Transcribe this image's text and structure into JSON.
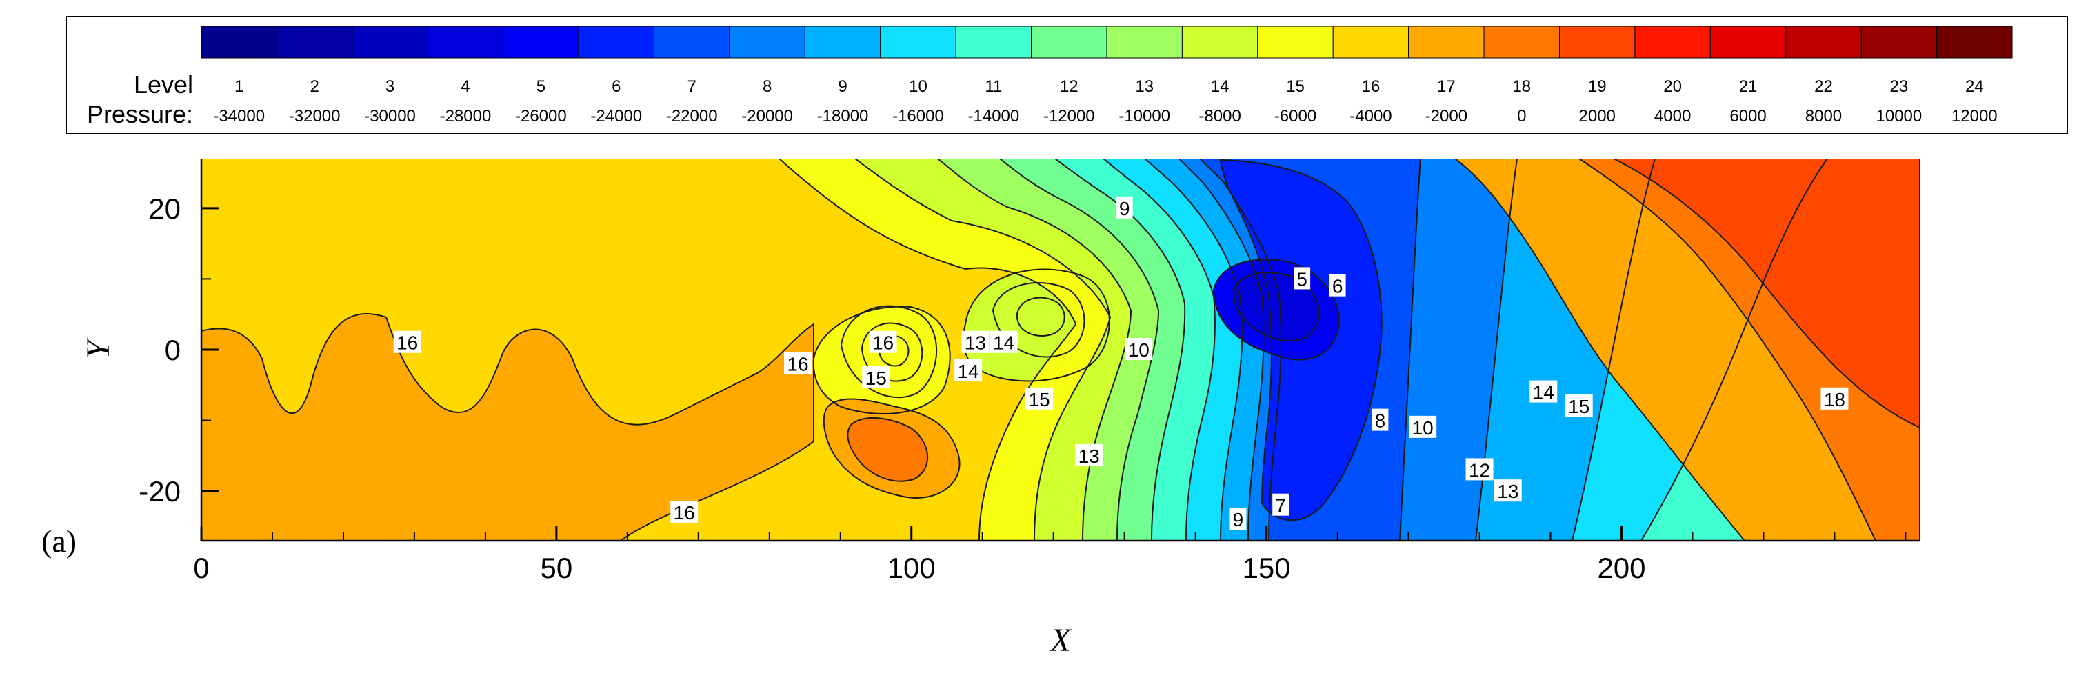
{
  "chart_data": {
    "type": "heatmap",
    "subtype": "contour",
    "panel_label": "(a)",
    "xlabel": "X",
    "ylabel": "Y",
    "xlim": [
      0,
      242
    ],
    "ylim": [
      -27,
      27
    ],
    "xticks": [
      0,
      50,
      100,
      150,
      200
    ],
    "yticks": [
      -20,
      0,
      20
    ],
    "legend": {
      "placement": "top",
      "level_caption": "Level",
      "pressure_caption": "Pressure:",
      "levels": [
        {
          "level": "1",
          "pressure": "-34000",
          "color": "#00008f"
        },
        {
          "level": "2",
          "pressure": "-32000",
          "color": "#0000a6"
        },
        {
          "level": "3",
          "pressure": "-30000",
          "color": "#0000c0"
        },
        {
          "level": "4",
          "pressure": "-28000",
          "color": "#0000dc"
        },
        {
          "level": "5",
          "pressure": "-26000",
          "color": "#0000f5"
        },
        {
          "level": "6",
          "pressure": "-24000",
          "color": "#0020ff"
        },
        {
          "level": "7",
          "pressure": "-22000",
          "color": "#0050ff"
        },
        {
          "level": "8",
          "pressure": "-20000",
          "color": "#0080ff"
        },
        {
          "level": "9",
          "pressure": "-18000",
          "color": "#00b0ff"
        },
        {
          "level": "10",
          "pressure": "-16000",
          "color": "#10e0ff"
        },
        {
          "level": "11",
          "pressure": "-14000",
          "color": "#40ffd0"
        },
        {
          "level": "12",
          "pressure": "-12000",
          "color": "#70ff90"
        },
        {
          "level": "13",
          "pressure": "-10000",
          "color": "#a0ff60"
        },
        {
          "level": "14",
          "pressure": "-8000",
          "color": "#d0ff30"
        },
        {
          "level": "15",
          "pressure": "-6000",
          "color": "#f8ff10"
        },
        {
          "level": "16",
          "pressure": "-4000",
          "color": "#ffd800"
        },
        {
          "level": "17",
          "pressure": "-2000",
          "color": "#ffa800"
        },
        {
          "level": "18",
          "pressure": "0",
          "color": "#ff7800"
        },
        {
          "level": "19",
          "pressure": "2000",
          "color": "#ff4800"
        },
        {
          "level": "20",
          "pressure": "4000",
          "color": "#ff1800"
        },
        {
          "level": "21",
          "pressure": "6000",
          "color": "#e80000"
        },
        {
          "level": "22",
          "pressure": "8000",
          "color": "#c00000"
        },
        {
          "level": "23",
          "pressure": "10000",
          "color": "#980000"
        },
        {
          "level": "24",
          "pressure": "12000",
          "color": "#700000"
        }
      ]
    },
    "contour_labels": [
      {
        "text": "16",
        "x": 29,
        "y": 1
      },
      {
        "text": "16",
        "x": 84,
        "y": -2
      },
      {
        "text": "15",
        "x": 95,
        "y": -4
      },
      {
        "text": "16",
        "x": 96,
        "y": 1
      },
      {
        "text": "13",
        "x": 109,
        "y": 1
      },
      {
        "text": "14",
        "x": 113,
        "y": 1
      },
      {
        "text": "14",
        "x": 108,
        "y": -3
      },
      {
        "text": "15",
        "x": 118,
        "y": -7
      },
      {
        "text": "10",
        "x": 132,
        "y": 0
      },
      {
        "text": "9",
        "x": 130,
        "y": 20
      },
      {
        "text": "13",
        "x": 125,
        "y": -15
      },
      {
        "text": "5",
        "x": 155,
        "y": 10
      },
      {
        "text": "6",
        "x": 160,
        "y": 9
      },
      {
        "text": "8",
        "x": 166,
        "y": -10
      },
      {
        "text": "10",
        "x": 172,
        "y": -11
      },
      {
        "text": "7",
        "x": 152,
        "y": -22
      },
      {
        "text": "9",
        "x": 146,
        "y": -24
      },
      {
        "text": "14",
        "x": 189,
        "y": -6
      },
      {
        "text": "15",
        "x": 194,
        "y": -8
      },
      {
        "text": "12",
        "x": 180,
        "y": -17
      },
      {
        "text": "13",
        "x": 184,
        "y": -20
      },
      {
        "text": "18",
        "x": 230,
        "y": -7
      },
      {
        "text": "16",
        "x": 68,
        "y": -23
      }
    ],
    "regions": [
      {
        "level": 16,
        "shape": "background"
      },
      {
        "level": 17,
        "shape": "left-lobes"
      },
      {
        "level": 17,
        "shape": "vortex-a-outer"
      },
      {
        "level": 18,
        "shape": "vortex-a-mid"
      },
      {
        "level": 19,
        "shape": "vortex-a-core"
      },
      {
        "level": 15,
        "shape": "vortex-a-ring"
      },
      {
        "level": 17,
        "shape": "lower-lobe"
      },
      {
        "level": 18,
        "shape": "lower-lobe-core"
      },
      {
        "level": 17,
        "shape": "vortex-b-outer"
      },
      {
        "level": 18,
        "shape": "vortex-b-core"
      },
      {
        "level": 14,
        "shape": "vortex-b-ring"
      },
      {
        "level": 15,
        "shape": "band-15"
      },
      {
        "level": 14,
        "shape": "band-14"
      },
      {
        "level": 13,
        "shape": "band-13"
      },
      {
        "level": 12,
        "shape": "band-12"
      },
      {
        "level": 11,
        "shape": "band-11"
      },
      {
        "level": 10,
        "shape": "band-10"
      },
      {
        "level": 9,
        "shape": "band-9"
      },
      {
        "level": 8,
        "shape": "band-8"
      },
      {
        "level": 7,
        "shape": "band-7"
      },
      {
        "level": 6,
        "shape": "band-6"
      },
      {
        "level": 5,
        "shape": "core-5"
      },
      {
        "level": 4,
        "shape": "core-4"
      },
      {
        "level": 17,
        "shape": "right-17"
      },
      {
        "level": 18,
        "shape": "right-18"
      },
      {
        "level": 19,
        "shape": "right-19"
      }
    ]
  }
}
